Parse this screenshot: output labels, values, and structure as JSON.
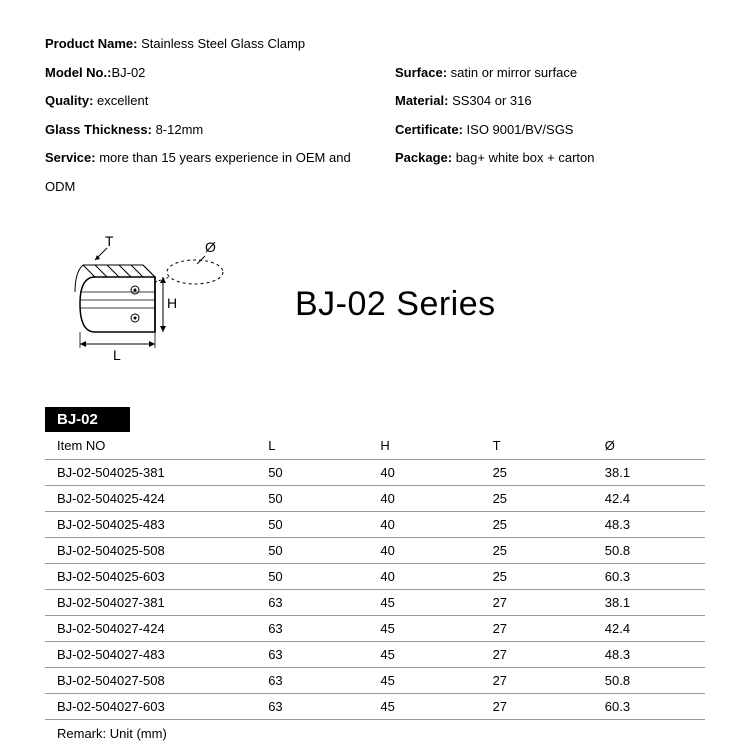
{
  "specs": {
    "left": [
      {
        "label": "Product Name:",
        "value": " Stainless Steel Glass Clamp"
      },
      {
        "label": "Model No.:",
        "value": "BJ-02"
      },
      {
        "label": "Quality:",
        "value": " excellent"
      },
      {
        "label": "Glass Thickness:",
        "value": " 8-12mm"
      },
      {
        "label": "Service:",
        "value": " more than 15 years experience in OEM and ODM"
      }
    ],
    "right": [
      {
        "label": "",
        "value": ""
      },
      {
        "label": "Surface:",
        "value": " satin or mirror surface"
      },
      {
        "label": "Material:",
        "value": " SS304 or 316"
      },
      {
        "label": "Certificate:",
        "value": " ISO 9001/BV/SGS"
      },
      {
        "label": "Package:",
        "value": " bag+ white box + carton"
      }
    ]
  },
  "diagram": {
    "labels": {
      "T": "T",
      "L": "L",
      "H": "H",
      "D": "Ø"
    }
  },
  "series_title": "BJ-02 Series",
  "table": {
    "title": "BJ-02",
    "columns": [
      "Item NO",
      "L",
      "H",
      "T",
      "Ø"
    ],
    "rows": [
      [
        "BJ-02-504025-381",
        "50",
        "40",
        "25",
        "38.1"
      ],
      [
        "BJ-02-504025-424",
        "50",
        "40",
        "25",
        "42.4"
      ],
      [
        "BJ-02-504025-483",
        "50",
        "40",
        "25",
        "48.3"
      ],
      [
        "BJ-02-504025-508",
        "50",
        "40",
        "25",
        "50.8"
      ],
      [
        "BJ-02-504025-603",
        "50",
        "40",
        "25",
        "60.3"
      ],
      [
        "BJ-02-504027-381",
        "63",
        "45",
        "27",
        "38.1"
      ],
      [
        "BJ-02-504027-424",
        "63",
        "45",
        "27",
        "42.4"
      ],
      [
        "BJ-02-504027-483",
        "63",
        "45",
        "27",
        "48.3"
      ],
      [
        "BJ-02-504027-508",
        "63",
        "45",
        "27",
        "50.8"
      ],
      [
        "BJ-02-504027-603",
        "63",
        "45",
        "27",
        "60.3"
      ]
    ],
    "remark": "Remark: Unit (mm)"
  },
  "style": {
    "background": "#ffffff",
    "text_color": "#000000",
    "header_bg": "#000000",
    "header_fg": "#ffffff",
    "row_border": "#999999",
    "spec_fontsize": 13,
    "series_fontsize": 34,
    "table_fontsize": 13
  }
}
